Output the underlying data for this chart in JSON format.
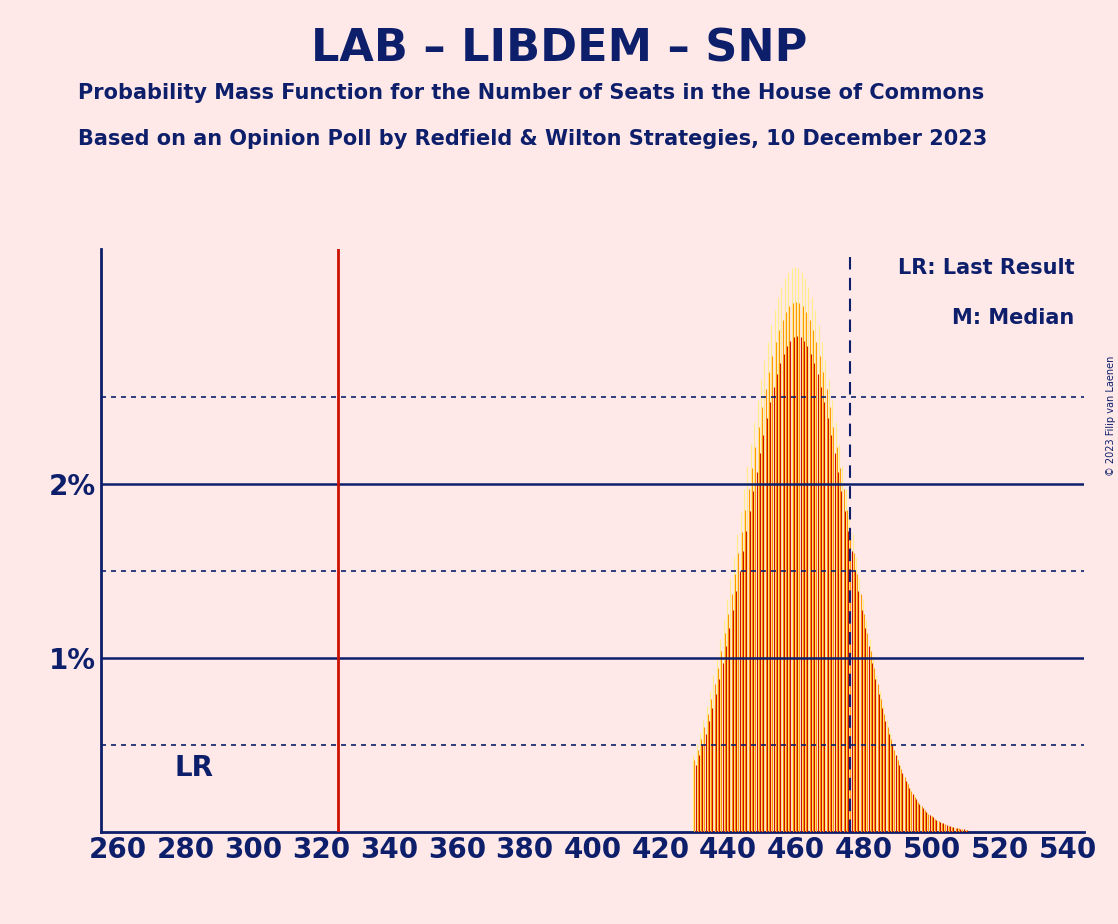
{
  "title": "LAB – LIBDEM – SNP",
  "subtitle1": "Probability Mass Function for the Number of Seats in the House of Commons",
  "subtitle2": "Based on an Opinion Poll by Redfield & Wilton Strategies, 10 December 2023",
  "copyright": "© 2023 Filip van Laenen",
  "legend1": "LR: Last Result",
  "legend2": "M: Median",
  "lr_label": "LR",
  "xlabel_ticks": [
    260,
    280,
    300,
    320,
    340,
    360,
    380,
    400,
    420,
    440,
    460,
    480,
    500,
    520,
    540
  ],
  "solid_hlines": [
    1.0,
    2.0
  ],
  "dotted_hlines": [
    0.5,
    1.5,
    2.5
  ],
  "lr_x": 325,
  "median_x": 476,
  "xlim": [
    255,
    545
  ],
  "ylim": [
    0.0,
    3.35
  ],
  "background_color": "#FFE8E8",
  "bar_color_yellow": "#FFEE88",
  "bar_color_orange": "#FF9900",
  "bar_color_red": "#CC1100",
  "title_color": "#0D1F6B",
  "axis_color": "#0D1F6B",
  "lr_line_color": "#CC1100",
  "median_line_color": "#0D1F6B",
  "grid_solid_color": "#0D1F6B",
  "grid_dot_color": "#0D1F6B"
}
